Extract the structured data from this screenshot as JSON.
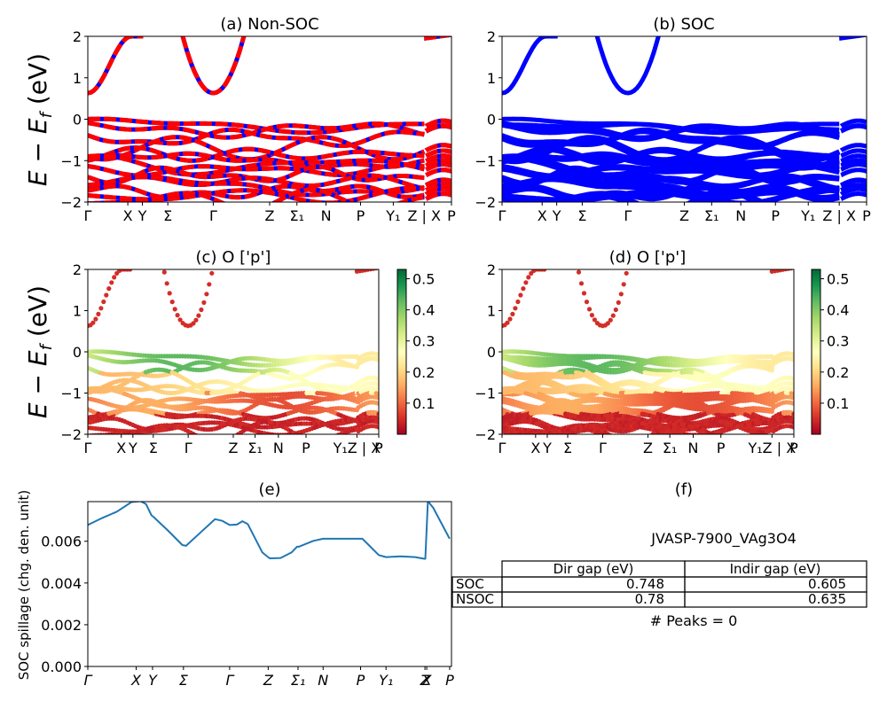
{
  "chart_data": [
    {
      "id": "a",
      "type": "line",
      "title": "(a) Non-SOC",
      "ylabel": "E − E_f (eV)",
      "ylim": [
        -2,
        2
      ],
      "yticks": [
        "−2",
        "−1",
        "0",
        "1",
        "2"
      ],
      "ytick_values": [
        -2,
        -1,
        0,
        1,
        2
      ],
      "xticks": [
        "Γ",
        "X",
        "Y",
        "Σ",
        "Γ",
        "Z",
        "Σ₁",
        "N",
        "P",
        "Y₁",
        "Z | X",
        "P"
      ],
      "xtick_positions": [
        0,
        0.11,
        0.15,
        0.22,
        0.345,
        0.5,
        0.575,
        0.655,
        0.75,
        0.84,
        0.925,
        1.0
      ],
      "series_colors": [
        "#ff0000",
        "#0000ff"
      ],
      "style": "dashed red/blue overlay",
      "conduction_band_min": 0.635,
      "valence_band_max": 0.0
    },
    {
      "id": "b",
      "type": "line",
      "title": "(b) SOC",
      "ylim": [
        -2,
        2
      ],
      "yticks": [
        "−2",
        "−1",
        "0",
        "1",
        "2"
      ],
      "ytick_values": [
        -2,
        -1,
        0,
        1,
        2
      ],
      "xticks": [
        "Γ",
        "X",
        "Y",
        "Σ",
        "Γ",
        "Z",
        "Σ₁",
        "N",
        "P",
        "Y₁",
        "Z | X",
        "P"
      ],
      "xtick_positions": [
        0,
        0.11,
        0.15,
        0.22,
        0.345,
        0.5,
        0.575,
        0.655,
        0.75,
        0.84,
        0.925,
        1.0
      ],
      "series_colors": [
        "#0000ff"
      ],
      "conduction_band_min": 0.605,
      "valence_band_max": 0.0
    },
    {
      "id": "c",
      "type": "scatter",
      "title": "(c)  O ['p']",
      "ylabel": "E − E_f (eV)",
      "ylim": [
        -2,
        2
      ],
      "yticks": [
        "−2",
        "−1",
        "0",
        "1",
        "2"
      ],
      "ytick_values": [
        -2,
        -1,
        0,
        1,
        2
      ],
      "xticks": [
        "Γ",
        "X",
        "Y",
        "Σ",
        "Γ",
        "Z",
        "Σ₁",
        "N",
        "P",
        "Y₁Z | X",
        "P"
      ],
      "xtick_positions": [
        0,
        0.115,
        0.155,
        0.225,
        0.345,
        0.5,
        0.575,
        0.655,
        0.75,
        0.925,
        1.0
      ],
      "colorbar": {
        "cmap": "RdYlGn",
        "min": 0.0,
        "max": 0.53,
        "ticks": [
          "0.1",
          "0.2",
          "0.3",
          "0.4",
          "0.5"
        ],
        "tick_values": [
          0.1,
          0.2,
          0.3,
          0.4,
          0.5
        ]
      }
    },
    {
      "id": "d",
      "type": "scatter",
      "title": "(d) O ['p']",
      "ylim": [
        -2,
        2
      ],
      "yticks": [
        "−2",
        "−1",
        "0",
        "1",
        "2"
      ],
      "ytick_values": [
        -2,
        -1,
        0,
        1,
        2
      ],
      "xticks": [
        "Γ",
        "X",
        "Y",
        "Σ",
        "Γ",
        "Z",
        "Σ₁",
        "N",
        "P",
        "Y₁Z | X",
        "P"
      ],
      "xtick_positions": [
        0,
        0.115,
        0.155,
        0.225,
        0.345,
        0.5,
        0.575,
        0.655,
        0.75,
        0.925,
        1.0
      ],
      "colorbar": {
        "cmap": "RdYlGn",
        "min": 0.0,
        "max": 0.53,
        "ticks": [
          "0.1",
          "0.2",
          "0.3",
          "0.4",
          "0.5"
        ],
        "tick_values": [
          0.1,
          0.2,
          0.3,
          0.4,
          0.5
        ]
      }
    },
    {
      "id": "e",
      "type": "line",
      "title": "(e)",
      "ylabel": "SOC spillage (chg. den. unit)",
      "ylim": [
        0,
        0.0079
      ],
      "yticks": [
        "0.000",
        "0.002",
        "0.004",
        "0.006"
      ],
      "ytick_values": [
        0,
        0.002,
        0.004,
        0.006
      ],
      "xticks": [
        "Γ",
        "X",
        "Y",
        "Σ",
        "Γ",
        "Z",
        "Σ₁",
        "N",
        "P",
        "Y₁",
        "Z",
        "X",
        "P"
      ],
      "xtick_positions": [
        0,
        0.133,
        0.178,
        0.263,
        0.39,
        0.496,
        0.578,
        0.647,
        0.75,
        0.82,
        0.927,
        0.932,
        0.995
      ],
      "line_color": "#1f77b4",
      "x": [
        0,
        0.04,
        0.08,
        0.12,
        0.145,
        0.16,
        0.175,
        0.18,
        0.22,
        0.26,
        0.27,
        0.31,
        0.35,
        0.37,
        0.39,
        0.41,
        0.425,
        0.44,
        0.48,
        0.5,
        0.53,
        0.56,
        0.575,
        0.58,
        0.62,
        0.647,
        0.7,
        0.755,
        0.77,
        0.8,
        0.82,
        0.86,
        0.9,
        0.925,
        0.928,
        0.935,
        0.95,
        0.995
      ],
      "values": [
        0.00678,
        0.00712,
        0.00742,
        0.00788,
        0.00792,
        0.00778,
        0.00724,
        0.00718,
        0.00652,
        0.00582,
        0.00578,
        0.00642,
        0.00706,
        0.00698,
        0.00678,
        0.0068,
        0.00696,
        0.00682,
        0.00546,
        0.00518,
        0.0052,
        0.00546,
        0.00574,
        0.00574,
        0.00602,
        0.00612,
        0.00612,
        0.00612,
        0.00586,
        0.00534,
        0.00524,
        0.00528,
        0.00524,
        0.00516,
        0.00516,
        0.00792,
        0.0076,
        0.00612
      ]
    }
  ],
  "table": {
    "title": "(f)",
    "material": "JVASP-7900_VAg3O4",
    "columns": [
      "Dir gap (eV)",
      "Indir gap (eV)"
    ],
    "rows": [
      {
        "label": "SOC",
        "dir_gap": "0.748",
        "indir_gap": "0.605"
      },
      {
        "label": "NSOC",
        "dir_gap": "0.78",
        "indir_gap": "0.635"
      }
    ],
    "peaks_text": "# Peaks = 0"
  }
}
